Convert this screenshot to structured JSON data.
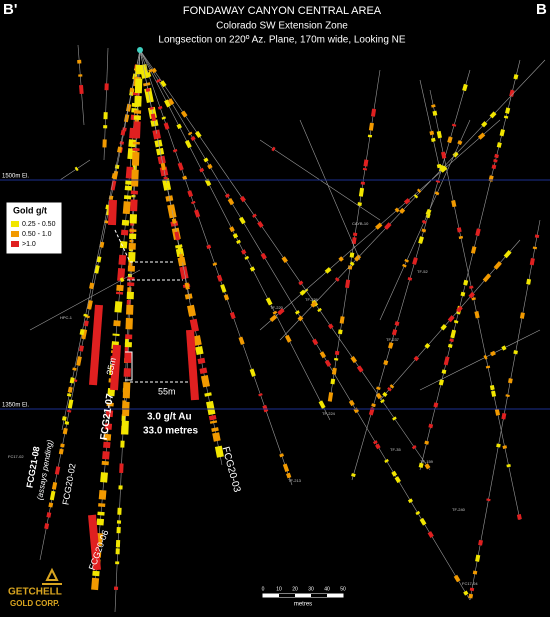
{
  "header": {
    "left_marker": "B'",
    "right_marker": "B",
    "title": "FONDAWAY CANYON CENTRAL AREA",
    "subtitle": "Colorado SW Extension Zone",
    "description": "Longsection on 220º Az. Plane, 170m wide, Looking NE"
  },
  "elevations": [
    "1500m El.",
    "1350m El."
  ],
  "legend": {
    "title": "Gold g/t",
    "items": [
      "0.25 - 0.50",
      "0.50 - 1.0",
      ">1.0"
    ]
  },
  "holes": {
    "fcg21_08": "FCG21-08",
    "fcg21_08_note": "(assays pending)",
    "fcg20_02": "FCG20-02",
    "fcg20_06": "FCG20-06",
    "fcg21_07": "FCG21-07",
    "fcg20_03": "FCG20-03"
  },
  "intercept": {
    "grade": "3.0 g/t Au",
    "length": "33.0 metres"
  },
  "distances": [
    "35m",
    "55m"
  ],
  "minor_labels": [
    "FC17-02",
    "HPC-1",
    "TF-213",
    "TF-159",
    "TF-224",
    "TF-237",
    "TF-236",
    "TF-220",
    "TF-35",
    "TF-52",
    "CAYB-10",
    "FC17-04",
    "TF-240"
  ],
  "scale_bar": {
    "ticks": [
      "0",
      "10",
      "20",
      "30",
      "40",
      "50"
    ],
    "unit": "metres"
  },
  "logo": {
    "line1": "GETCHELL",
    "line2": "GOLD CORP."
  }
}
